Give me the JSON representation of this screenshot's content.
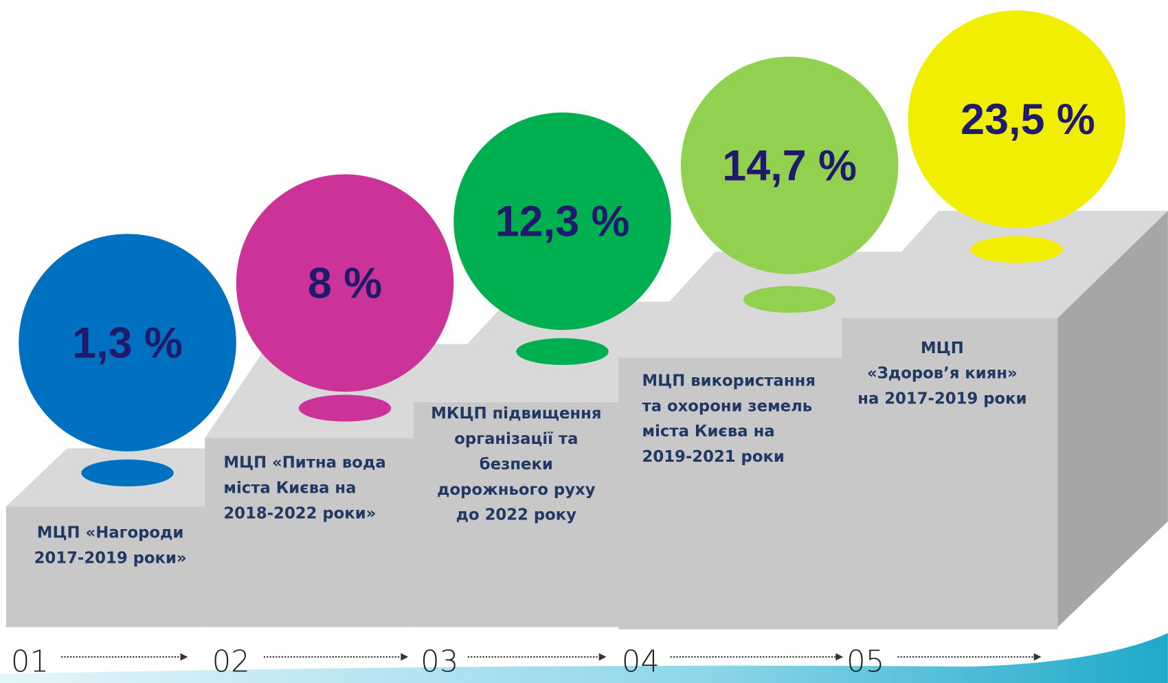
{
  "steps": [
    {
      "number": "01",
      "value": "1,3 %",
      "lines": [
        "МЦП «Нагороди",
        "2017-2019 роки»"
      ]
    },
    {
      "number": "02",
      "value": "8 %",
      "lines": [
        "МЦП «Питна вода",
        "міста Києва на",
        "2018-2022 роки»"
      ]
    },
    {
      "number": "03",
      "value": "12,3 %",
      "lines": [
        "МКЦП підвищення",
        "організації та",
        "безпеки",
        "дорожнього руху",
        "до 2022 року"
      ]
    },
    {
      "number": "04",
      "value": "14,7 %",
      "lines": [
        "МЦП використання",
        "та охорони земель",
        "міста Києва на",
        "2019-2021 роки"
      ]
    },
    {
      "number": "05",
      "value": "23,5 %",
      "lines": [
        "МЦП",
        "«Здоров’я киян»",
        "на 2017-2019 роки"
      ]
    }
  ]
}
